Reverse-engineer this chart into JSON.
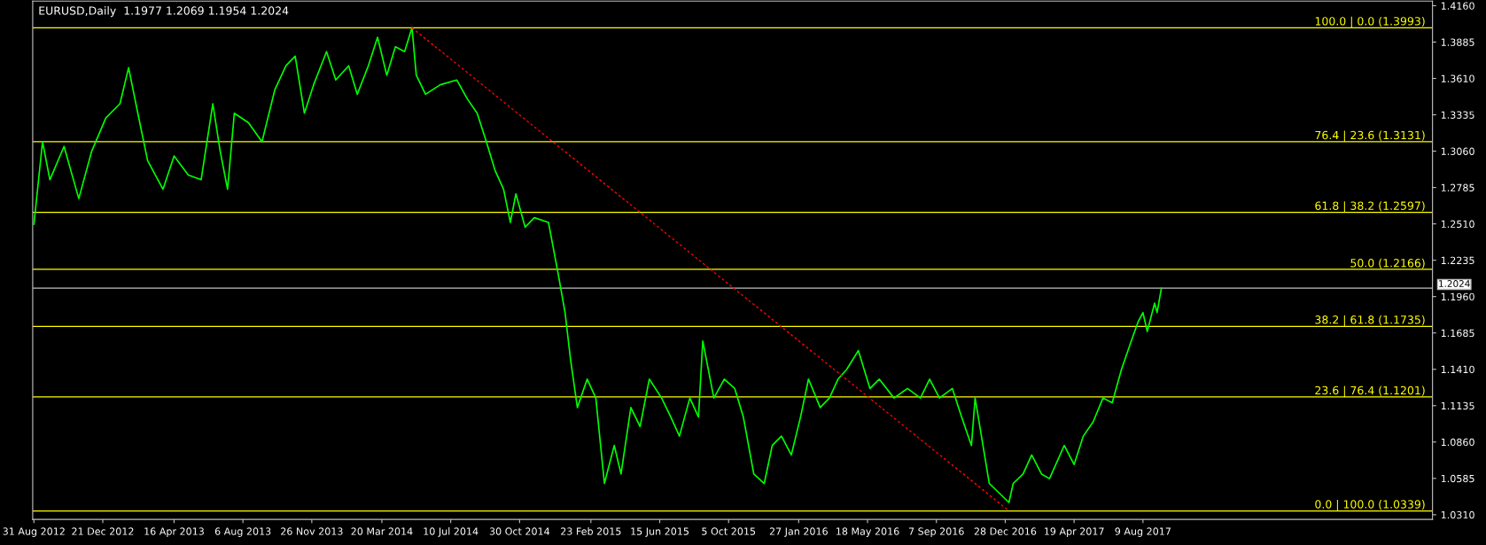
{
  "chart_data": {
    "type": "line",
    "title": "EURUSD,Daily  1.1977 1.2069 1.1954 1.2024",
    "grid": false,
    "legend": false,
    "marker": "none",
    "xlim": [
      "2012-08-29",
      "2018-11-23"
    ],
    "ylim": [
      1.0275,
      1.4195
    ],
    "xticks": [
      {
        "value": "2012-08-31",
        "label": "31 Aug 2012"
      },
      {
        "value": "2012-12-21",
        "label": "21 Dec 2012"
      },
      {
        "value": "2013-04-16",
        "label": "16 Apr 2013"
      },
      {
        "value": "2013-08-06",
        "label": "6 Aug 2013"
      },
      {
        "value": "2013-11-26",
        "label": "26 Nov 2013"
      },
      {
        "value": "2014-03-20",
        "label": "20 Mar 2014"
      },
      {
        "value": "2014-07-10",
        "label": "10 Jul 2014"
      },
      {
        "value": "2014-10-30",
        "label": "30 Oct 2014"
      },
      {
        "value": "2015-02-23",
        "label": "23 Feb 2015"
      },
      {
        "value": "2015-06-15",
        "label": "15 Jun 2015"
      },
      {
        "value": "2015-10-05",
        "label": "5 Oct 2015"
      },
      {
        "value": "2016-01-27",
        "label": "27 Jan 2016"
      },
      {
        "value": "2016-05-18",
        "label": "18 May 2016"
      },
      {
        "value": "2016-09-07",
        "label": "7 Sep 2016"
      },
      {
        "value": "2016-12-28",
        "label": "28 Dec 2016"
      },
      {
        "value": "2017-04-19",
        "label": "19 Apr 2017"
      },
      {
        "value": "2017-08-09",
        "label": "9 Aug 2017"
      }
    ],
    "yticks": [
      {
        "value": 1.031,
        "label": "1.0310"
      },
      {
        "value": 1.0585,
        "label": "1.0585"
      },
      {
        "value": 1.086,
        "label": "1.0860"
      },
      {
        "value": 1.1135,
        "label": "1.1135"
      },
      {
        "value": 1.141,
        "label": "1.1410"
      },
      {
        "value": 1.1685,
        "label": "1.1685"
      },
      {
        "value": 1.196,
        "label": "1.1960"
      },
      {
        "value": 1.2235,
        "label": "1.2235"
      },
      {
        "value": 1.251,
        "label": "1.2510"
      },
      {
        "value": 1.2785,
        "label": "1.2785"
      },
      {
        "value": 1.306,
        "label": "1.3060"
      },
      {
        "value": 1.3335,
        "label": "1.3335"
      },
      {
        "value": 1.361,
        "label": "1.3610"
      },
      {
        "value": 1.3885,
        "label": "1.3885"
      },
      {
        "value": 1.416,
        "label": "1.4160"
      }
    ],
    "ref_lines": [
      {
        "axis": "y",
        "value": 1.3993,
        "label": "100.0 | 0.0 (1.3993)",
        "color": "#ffff00"
      },
      {
        "axis": "y",
        "value": 1.3131,
        "label": "76.4 | 23.6 (1.3131)",
        "color": "#ffff00"
      },
      {
        "axis": "y",
        "value": 1.2597,
        "label": "61.8 | 38.2 (1.2597)",
        "color": "#ffff00"
      },
      {
        "axis": "y",
        "value": 1.2166,
        "label": "50.0 (1.2166)",
        "color": "#ffff00"
      },
      {
        "axis": "y",
        "value": 1.1735,
        "label": "38.2 | 61.8 (1.1735)",
        "color": "#ffff00"
      },
      {
        "axis": "y",
        "value": 1.1201,
        "label": "23.6 | 76.4 (1.1201)",
        "color": "#ffff00"
      },
      {
        "axis": "y",
        "value": 1.0339,
        "label": "0.0 | 100.0 (1.0339)",
        "color": "#ffff00"
      },
      {
        "axis": "y",
        "value": 1.2024,
        "label": "1.2024",
        "color": "#c0c0c0"
      }
    ],
    "series": [
      {
        "color": "#00ff00",
        "x": [
          "2012-08-31",
          "2012-09-14",
          "2012-09-26",
          "2012-10-19",
          "2012-11-12",
          "2012-12-03",
          "2012-12-26",
          "2013-01-18",
          "2013-02-01",
          "2013-02-16",
          "2013-03-04",
          "2013-03-29",
          "2013-04-16",
          "2013-05-09",
          "2013-05-30",
          "2013-06-18",
          "2013-06-30",
          "2013-07-12",
          "2013-07-23",
          "2013-08-15",
          "2013-09-06",
          "2013-09-27",
          "2013-10-15",
          "2013-10-30",
          "2013-11-14",
          "2013-11-29",
          "2013-12-20",
          "2014-01-04",
          "2014-01-25",
          "2014-02-08",
          "2014-02-26",
          "2014-03-13",
          "2014-03-28",
          "2014-04-11",
          "2014-04-26",
          "2014-05-08",
          "2014-05-15",
          "2014-05-30",
          "2014-06-23",
          "2014-07-20",
          "2014-08-06",
          "2014-08-22",
          "2014-09-06",
          "2014-09-20",
          "2014-10-04",
          "2014-10-15",
          "2014-10-24",
          "2014-11-08",
          "2014-11-23",
          "2014-12-16",
          "2015-01-01",
          "2015-01-12",
          "2015-01-21",
          "2015-02-01",
          "2015-02-17",
          "2015-03-03",
          "2015-03-17",
          "2015-04-02",
          "2015-04-13",
          "2015-04-29",
          "2015-05-14",
          "2015-05-29",
          "2015-06-18",
          "2015-07-03",
          "2015-07-17",
          "2015-08-03",
          "2015-08-17",
          "2015-08-24",
          "2015-09-11",
          "2015-09-28",
          "2015-10-15",
          "2015-10-29",
          "2015-11-15",
          "2015-12-02",
          "2015-12-15",
          "2015-12-30",
          "2016-01-15",
          "2016-01-30",
          "2016-02-12",
          "2016-03-02",
          "2016-03-17",
          "2016-03-31",
          "2016-04-14",
          "2016-05-03",
          "2016-05-22",
          "2016-06-06",
          "2016-06-30",
          "2016-07-22",
          "2016-08-12",
          "2016-08-27",
          "2016-09-12",
          "2016-10-03",
          "2016-10-18",
          "2016-11-03",
          "2016-11-09",
          "2016-12-02",
          "2016-12-18",
          "2017-01-03",
          "2017-01-10",
          "2017-01-26",
          "2017-02-09",
          "2017-02-25",
          "2017-03-10",
          "2017-04-03",
          "2017-04-19",
          "2017-05-04",
          "2017-05-20",
          "2017-06-05",
          "2017-06-20",
          "2017-07-05",
          "2017-07-21",
          "2017-08-01",
          "2017-08-09",
          "2017-08-16",
          "2017-08-28",
          "2017-09-01",
          "2017-09-08"
        ],
        "values": [
          1.2507,
          1.3131,
          1.2844,
          1.3096,
          1.2701,
          1.306,
          1.3311,
          1.3419,
          1.3691,
          1.3347,
          1.2988,
          1.2772,
          1.3024,
          1.288,
          1.2844,
          1.3419,
          1.306,
          1.2772,
          1.3347,
          1.3275,
          1.3131,
          1.3526,
          1.3706,
          1.3778,
          1.3347,
          1.3562,
          1.3813,
          1.3598,
          1.3706,
          1.349,
          1.3706,
          1.3921,
          1.3634,
          1.3849,
          1.3813,
          1.3993,
          1.3634,
          1.349,
          1.3562,
          1.3598,
          1.3455,
          1.3347,
          1.3131,
          1.2916,
          1.2772,
          1.2521,
          1.2737,
          1.2485,
          1.2557,
          1.2521,
          1.2126,
          1.1839,
          1.148,
          1.1121,
          1.1336,
          1.1193,
          1.0547,
          1.0834,
          1.0618,
          1.1121,
          1.0977,
          1.1336,
          1.1193,
          1.1049,
          1.0905,
          1.1193,
          1.1049,
          1.1624,
          1.1193,
          1.1336,
          1.1265,
          1.1049,
          1.0618,
          1.0547,
          1.0834,
          1.0905,
          1.0762,
          1.1049,
          1.1336,
          1.1121,
          1.1193,
          1.1336,
          1.1408,
          1.1552,
          1.1265,
          1.1336,
          1.1193,
          1.1265,
          1.1193,
          1.1336,
          1.1193,
          1.1265,
          1.1049,
          1.0834,
          1.1193,
          1.0547,
          1.0475,
          1.0403,
          1.0547,
          1.0618,
          1.0762,
          1.0618,
          1.0583,
          1.0834,
          1.069,
          1.0905,
          1.1013,
          1.1193,
          1.1157,
          1.1408,
          1.1624,
          1.1767,
          1.1839,
          1.1696,
          1.1911,
          1.1839,
          1.2024
        ]
      },
      {
        "color": "#ff0000",
        "line_style": "dotted",
        "x": [
          "2014-05-08",
          "2017-01-03"
        ],
        "values": [
          1.3993,
          1.0339
        ]
      }
    ]
  }
}
